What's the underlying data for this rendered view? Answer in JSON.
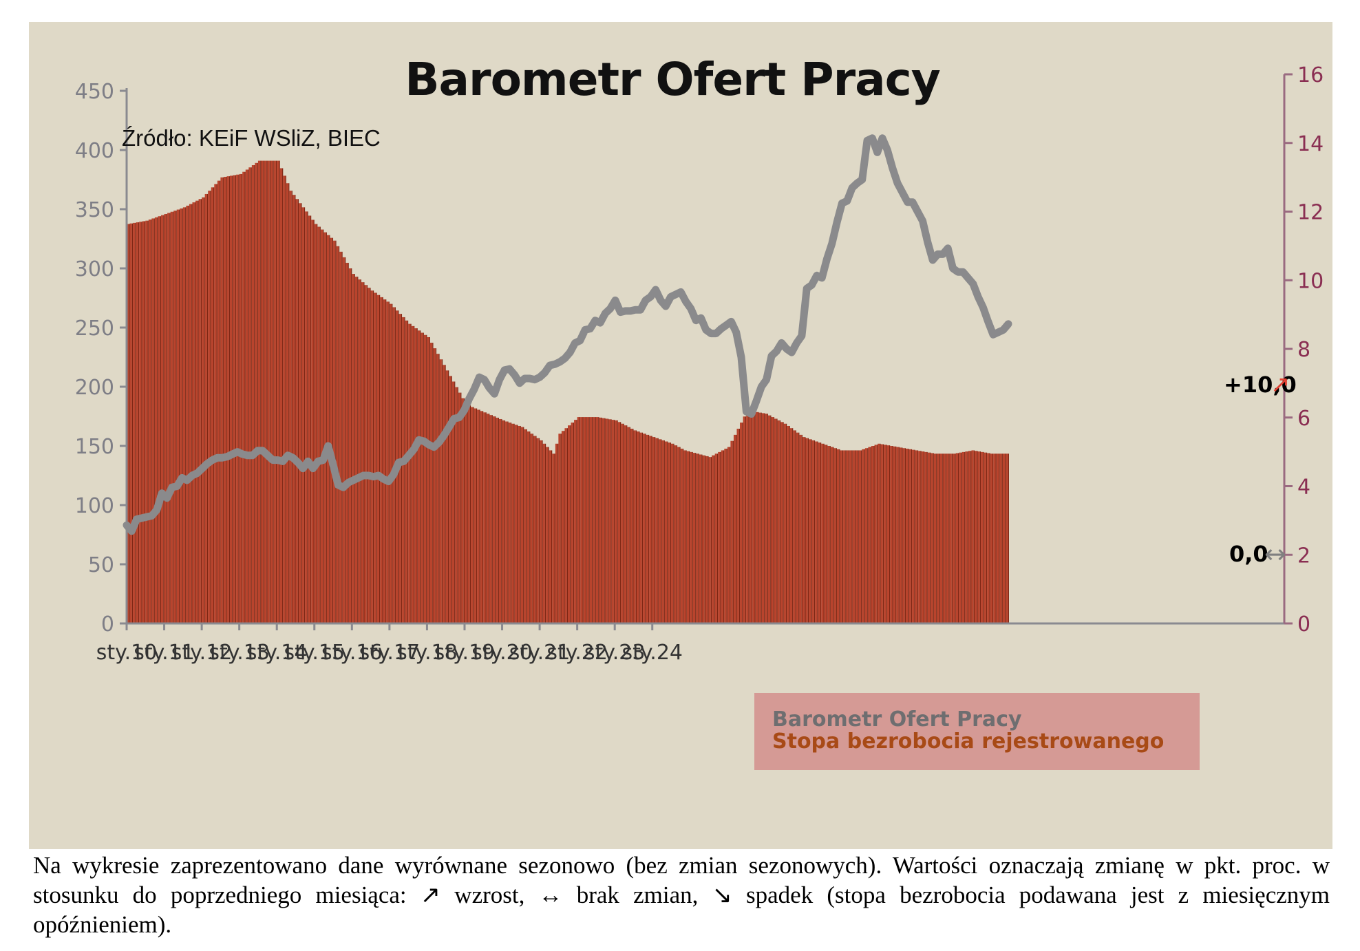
{
  "chart_data": {
    "type": "bar+line",
    "title": "Barometr Ofert Pracy",
    "source": "Źródło: KEiF WSliZ, BIEC",
    "x_tick_labels": [
      "sty.10",
      "sty.11",
      "sty.12",
      "sty.13",
      "sty.14",
      "sty.15",
      "sty.16",
      "sty.17",
      "sty.18",
      "sty.19",
      "sty.20",
      "sty.21",
      "sty.22",
      "sty.23",
      "sty.24"
    ],
    "y_left": {
      "range": [
        0,
        450
      ],
      "ticks": [
        "0",
        "50",
        "100",
        "150",
        "200",
        "250",
        "300",
        "350",
        "400",
        "450"
      ]
    },
    "y_right": {
      "range": [
        0,
        16
      ],
      "ticks": [
        "0",
        "2",
        "4",
        "6",
        "8",
        "10",
        "12",
        "14",
        "16"
      ]
    },
    "series": [
      {
        "name": "Barometr Ofert Pracy",
        "type": "line",
        "axis": "left",
        "color": "#8a8a8c",
        "points": [
          [
            0,
            83
          ],
          [
            1,
            78
          ],
          [
            2,
            88
          ],
          [
            3,
            89
          ],
          [
            4,
            90
          ],
          [
            5,
            91
          ],
          [
            6,
            96
          ],
          [
            7,
            110
          ],
          [
            8,
            106
          ],
          [
            9,
            115
          ],
          [
            10,
            116
          ],
          [
            11,
            123
          ],
          [
            12,
            121
          ],
          [
            13,
            125
          ],
          [
            14,
            127
          ],
          [
            15,
            131
          ],
          [
            16,
            135
          ],
          [
            17,
            138
          ],
          [
            18,
            140
          ],
          [
            19,
            140
          ],
          [
            20,
            141
          ],
          [
            21,
            143
          ],
          [
            22,
            145
          ],
          [
            23,
            143
          ],
          [
            24,
            142
          ],
          [
            25,
            142
          ],
          [
            26,
            146
          ],
          [
            27,
            146
          ],
          [
            28,
            142
          ],
          [
            29,
            138
          ],
          [
            30,
            138
          ],
          [
            31,
            137
          ],
          [
            32,
            142
          ],
          [
            33,
            140
          ],
          [
            34,
            136
          ],
          [
            35,
            131
          ],
          [
            36,
            137
          ],
          [
            37,
            131
          ],
          [
            38,
            137
          ],
          [
            39,
            138
          ],
          [
            40,
            150
          ],
          [
            41,
            134
          ],
          [
            42,
            117
          ],
          [
            43,
            115
          ],
          [
            44,
            119
          ],
          [
            45,
            121
          ],
          [
            46,
            123
          ],
          [
            47,
            125
          ],
          [
            48,
            125
          ],
          [
            49,
            124
          ],
          [
            50,
            125
          ],
          [
            51,
            122
          ],
          [
            52,
            120
          ],
          [
            53,
            126
          ],
          [
            54,
            136
          ],
          [
            55,
            137
          ],
          [
            56,
            142
          ],
          [
            57,
            147
          ],
          [
            58,
            155
          ],
          [
            59,
            154
          ],
          [
            60,
            151
          ],
          [
            61,
            149
          ],
          [
            62,
            153
          ],
          [
            63,
            159
          ],
          [
            64,
            166
          ],
          [
            65,
            173
          ],
          [
            66,
            174
          ],
          [
            67,
            180
          ],
          [
            68,
            190
          ],
          [
            69,
            198
          ],
          [
            70,
            208
          ],
          [
            71,
            206
          ],
          [
            72,
            199
          ],
          [
            73,
            194
          ],
          [
            74,
            206
          ],
          [
            75,
            214
          ],
          [
            76,
            215
          ],
          [
            77,
            210
          ],
          [
            78,
            203
          ],
          [
            79,
            207
          ],
          [
            80,
            207
          ],
          [
            81,
            206
          ],
          [
            82,
            208
          ],
          [
            83,
            212
          ],
          [
            84,
            218
          ],
          [
            85,
            219
          ],
          [
            86,
            221
          ],
          [
            87,
            224
          ],
          [
            88,
            229
          ],
          [
            89,
            237
          ],
          [
            90,
            239
          ],
          [
            91,
            248
          ],
          [
            92,
            249
          ],
          [
            93,
            256
          ],
          [
            94,
            254
          ],
          [
            95,
            262
          ],
          [
            96,
            266
          ],
          [
            97,
            273
          ],
          [
            98,
            263
          ],
          [
            99,
            264
          ],
          [
            100,
            264
          ],
          [
            101,
            265
          ],
          [
            102,
            265
          ],
          [
            103,
            273
          ],
          [
            104,
            276
          ],
          [
            105,
            282
          ],
          [
            106,
            273
          ],
          [
            107,
            268
          ],
          [
            108,
            276
          ],
          [
            109,
            278
          ],
          [
            110,
            280
          ],
          [
            111,
            272
          ],
          [
            112,
            266
          ],
          [
            113,
            256
          ],
          [
            114,
            258
          ],
          [
            115,
            248
          ],
          [
            116,
            245
          ],
          [
            117,
            245
          ],
          [
            118,
            249
          ],
          [
            119,
            252
          ],
          [
            120,
            255
          ],
          [
            121,
            246
          ],
          [
            122,
            225
          ],
          [
            123,
            179
          ],
          [
            124,
            177
          ],
          [
            125,
            188
          ],
          [
            126,
            200
          ],
          [
            127,
            206
          ],
          [
            128,
            226
          ],
          [
            129,
            230
          ],
          [
            130,
            237
          ],
          [
            131,
            232
          ],
          [
            132,
            229
          ],
          [
            133,
            237
          ],
          [
            134,
            243
          ],
          [
            135,
            283
          ],
          [
            136,
            286
          ],
          [
            137,
            294
          ],
          [
            138,
            292
          ],
          [
            139,
            308
          ],
          [
            140,
            321
          ],
          [
            141,
            339
          ],
          [
            142,
            355
          ],
          [
            143,
            357
          ],
          [
            144,
            368
          ],
          [
            145,
            372
          ],
          [
            146,
            375
          ],
          [
            147,
            408
          ],
          [
            148,
            410
          ],
          [
            149,
            398
          ],
          [
            150,
            410
          ],
          [
            151,
            400
          ],
          [
            152,
            385
          ],
          [
            153,
            372
          ],
          [
            154,
            364
          ],
          [
            155,
            356
          ],
          [
            156,
            356
          ],
          [
            157,
            348
          ],
          [
            158,
            340
          ],
          [
            159,
            322
          ],
          [
            160,
            307
          ],
          [
            161,
            312
          ],
          [
            162,
            312
          ],
          [
            163,
            317
          ],
          [
            164,
            300
          ],
          [
            165,
            297
          ],
          [
            166,
            297
          ],
          [
            167,
            292
          ],
          [
            168,
            287
          ],
          [
            169,
            276
          ],
          [
            170,
            267
          ],
          [
            171,
            255
          ],
          [
            172,
            244
          ],
          [
            173,
            246
          ],
          [
            174,
            248
          ],
          [
            175,
            253
          ]
        ]
      },
      {
        "name": "Stopa bezrobocia rejestrowanego",
        "type": "bar",
        "axis": "right",
        "color": "#b9442d",
        "points": [
          [
            0,
            12.0
          ],
          [
            6,
            12.1
          ],
          [
            12,
            12.3
          ],
          [
            18,
            12.5
          ],
          [
            24,
            12.8
          ],
          [
            30,
            13.4
          ],
          [
            36,
            13.5
          ],
          [
            42,
            13.9
          ],
          [
            48,
            13.9
          ],
          [
            52,
            13.0
          ],
          [
            60,
            12.0
          ],
          [
            66,
            11.5
          ],
          [
            72,
            10.5
          ],
          [
            78,
            10.0
          ],
          [
            84,
            9.6
          ],
          [
            90,
            9.0
          ],
          [
            96,
            8.6
          ],
          [
            102,
            7.6
          ],
          [
            108,
            6.6
          ],
          [
            110,
            6.5
          ],
          [
            120,
            6.1
          ],
          [
            126,
            5.9
          ],
          [
            132,
            5.5
          ],
          [
            136,
            5.1
          ],
          [
            138,
            5.7
          ],
          [
            144,
            6.2
          ],
          [
            150,
            6.2
          ],
          [
            156,
            6.1
          ],
          [
            162,
            5.8
          ],
          [
            168,
            5.6
          ],
          [
            174,
            5.4
          ],
          [
            178,
            5.2
          ],
          [
            182,
            5.1
          ],
          [
            186,
            5.0
          ],
          [
            192,
            5.3
          ],
          [
            198,
            6.4
          ],
          [
            204,
            6.3
          ],
          [
            210,
            6.0
          ],
          [
            216,
            5.6
          ],
          [
            222,
            5.4
          ],
          [
            228,
            5.2
          ],
          [
            234,
            5.2
          ],
          [
            240,
            5.4
          ],
          [
            246,
            5.3
          ],
          [
            252,
            5.2
          ],
          [
            258,
            5.1
          ],
          [
            264,
            5.1
          ],
          [
            270,
            5.2
          ],
          [
            276,
            5.1
          ],
          [
            281,
            5.1
          ]
        ]
      }
    ],
    "annotations": [
      {
        "text": "+10,0",
        "arrow": "↗",
        "arrow_color": "#e04032"
      },
      {
        "text": "0,0",
        "arrow": "↔",
        "arrow_color": "#808080"
      }
    ],
    "legend": {
      "placement": "bottom-right",
      "box_color": "#d49590"
    },
    "grid": false
  },
  "caption": "Na wykresie zaprezentowano dane wyrównane sezonowo (bez zmian sezonowych). Wartości oznaczają zmianę w pkt. proc. w stosunku do poprzedniego miesiąca: ↗ wzrost, ↔ brak zmian, ↘ spadek (stopa bezrobocia podawana jest z miesięcznym opóźnieniem)."
}
